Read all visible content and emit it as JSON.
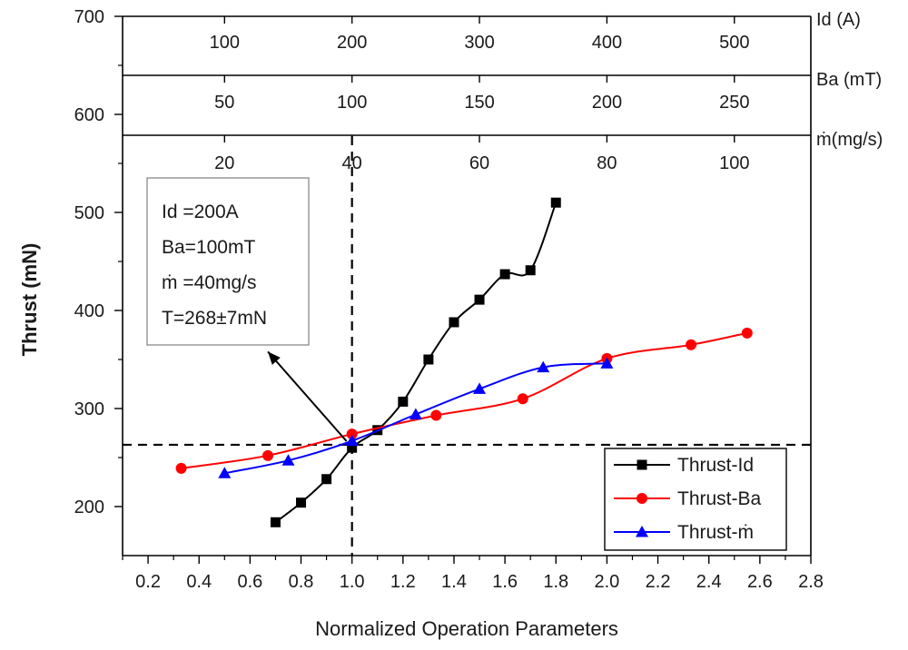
{
  "chart_data": {
    "type": "line",
    "xlabel": "Normalized Operation Parameters",
    "ylabel": "Thrust (mN)",
    "xlim": [
      0.1,
      2.8
    ],
    "ylim": [
      150,
      700
    ],
    "xticks": [
      0.2,
      0.4,
      0.6,
      0.8,
      1.0,
      1.2,
      1.4,
      1.6,
      1.8,
      2.0,
      2.2,
      2.4,
      2.6,
      2.8
    ],
    "xtick_labels": [
      "0.2",
      "0.4",
      "0.6",
      "0.8",
      "1.0",
      "1.2",
      "1.4",
      "1.6",
      "1.8",
      "2.0",
      "2.2",
      "2.4",
      "2.6",
      "2.8"
    ],
    "yticks": [
      200,
      300,
      400,
      500,
      600,
      700
    ],
    "ytick_labels": [
      "200",
      "300",
      "400",
      "500",
      "600",
      "700"
    ],
    "secondary_axes": [
      {
        "label": "Id (A)",
        "normalization_base": 200,
        "ticks": [
          100,
          200,
          300,
          400,
          500
        ],
        "tick_labels": [
          "100",
          "200",
          "300",
          "400",
          "500"
        ]
      },
      {
        "label": "Ba (mT)",
        "normalization_base": 100,
        "ticks": [
          50,
          100,
          150,
          200,
          250
        ],
        "tick_labels": [
          "50",
          "100",
          "150",
          "200",
          "250"
        ]
      },
      {
        "label": "ṁ(mg/s)",
        "normalization_base": 40,
        "ticks": [
          20,
          40,
          60,
          80,
          100
        ],
        "tick_labels": [
          "20",
          "40",
          "60",
          "80",
          "100"
        ]
      }
    ],
    "series": [
      {
        "name": "Thrust-Id",
        "color": "#000000",
        "marker": "square",
        "x": [
          0.7,
          0.8,
          0.9,
          1.0,
          1.1,
          1.2,
          1.3,
          1.4,
          1.5,
          1.6,
          1.7,
          1.8
        ],
        "y": [
          184,
          204,
          228,
          260,
          278,
          307,
          350,
          388,
          411,
          437,
          441,
          510
        ]
      },
      {
        "name": "Thrust-Ba",
        "color": "#ff0000",
        "marker": "circle",
        "x": [
          0.33,
          0.67,
          1.0,
          1.33,
          1.67,
          2.0,
          2.33,
          2.55
        ],
        "y": [
          239,
          252,
          274,
          293,
          310,
          351,
          365,
          377
        ]
      },
      {
        "name": "Thrust-m",
        "color": "#0000ff",
        "marker": "triangle",
        "x": [
          0.5,
          0.75,
          1.0,
          1.25,
          1.5,
          1.75,
          2.0
        ],
        "y": [
          234,
          247,
          267,
          294,
          320,
          342,
          346
        ]
      }
    ],
    "reference_lines": {
      "vertical_x": 1.0,
      "horizontal_y": 263
    },
    "annotation": {
      "lines": [
        "Id =200A",
        "Ba=100mT",
        "ṁ =40mg/s",
        "T=268±7mN"
      ],
      "arrow_target": {
        "x": 1.0,
        "y": 263
      },
      "arrow_tip": {
        "x": 0.67,
        "y": 358
      }
    },
    "legend": {
      "position": "bottom-right",
      "entries": [
        "Thrust-Id",
        "Thrust-Ba",
        "Thrust-ṁ"
      ]
    }
  }
}
